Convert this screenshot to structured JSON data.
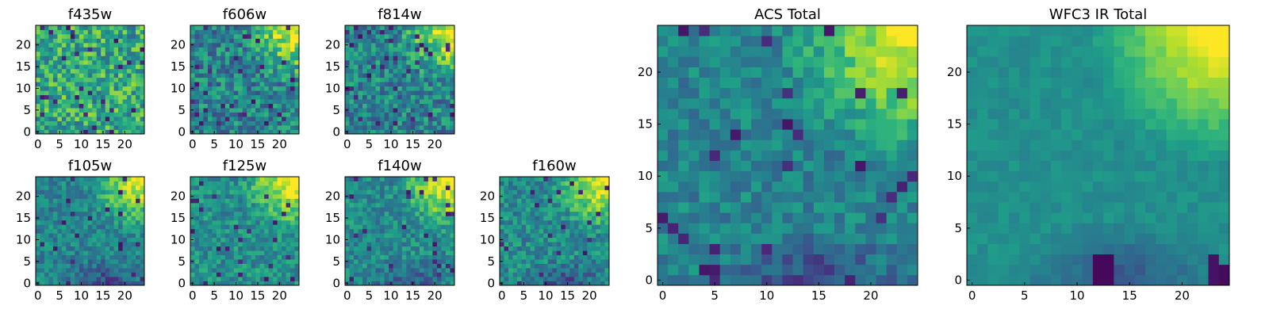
{
  "chart_data": [
    {
      "type": "heatmap",
      "title": "f435w",
      "grid_size": 25,
      "xlim": [
        0,
        24
      ],
      "ylim": [
        0,
        24
      ],
      "x_ticks": [
        0,
        5,
        10,
        15,
        20
      ],
      "y_ticks": [
        0,
        5,
        10,
        15,
        20
      ],
      "x_tick_labels": [
        "0",
        "5",
        "10",
        "15",
        "20"
      ],
      "y_tick_labels": [
        "0",
        "5",
        "10",
        "15",
        "20"
      ],
      "colormap": "viridis",
      "pattern": "uniform_noise",
      "level": 0.6,
      "noise": 0.25,
      "seed": 11
    },
    {
      "type": "heatmap",
      "title": "f606w",
      "grid_size": 25,
      "xlim": [
        0,
        24
      ],
      "ylim": [
        0,
        24
      ],
      "x_ticks": [
        0,
        5,
        10,
        15,
        20
      ],
      "y_ticks": [
        0,
        5,
        10,
        15,
        20
      ],
      "x_tick_labels": [
        "0",
        "5",
        "10",
        "15",
        "20"
      ],
      "y_tick_labels": [
        "0",
        "5",
        "10",
        "15",
        "20"
      ],
      "colormap": "viridis",
      "pattern": "corner_bright",
      "level": 0.45,
      "noise": 0.22,
      "seed": 22
    },
    {
      "type": "heatmap",
      "title": "f814w",
      "grid_size": 25,
      "xlim": [
        0,
        24
      ],
      "ylim": [
        0,
        24
      ],
      "x_ticks": [
        0,
        5,
        10,
        15,
        20
      ],
      "y_ticks": [
        0,
        5,
        10,
        15,
        20
      ],
      "x_tick_labels": [
        "0",
        "5",
        "10",
        "15",
        "20"
      ],
      "y_tick_labels": [
        "0",
        "5",
        "10",
        "15",
        "20"
      ],
      "colormap": "viridis",
      "pattern": "corner_bright",
      "level": 0.45,
      "noise": 0.22,
      "seed": 33
    },
    {
      "type": "heatmap",
      "title": "f105w",
      "grid_size": 25,
      "xlim": [
        0,
        24
      ],
      "ylim": [
        0,
        24
      ],
      "x_ticks": [
        0,
        5,
        10,
        15,
        20
      ],
      "y_ticks": [
        0,
        5,
        10,
        15,
        20
      ],
      "x_tick_labels": [
        "0",
        "5",
        "10",
        "15",
        "20"
      ],
      "y_tick_labels": [
        "0",
        "5",
        "10",
        "15",
        "20"
      ],
      "colormap": "viridis",
      "pattern": "corner_bright_dark_bottom",
      "level": 0.45,
      "noise": 0.15,
      "seed": 44
    },
    {
      "type": "heatmap",
      "title": "f125w",
      "grid_size": 25,
      "xlim": [
        0,
        24
      ],
      "ylim": [
        0,
        24
      ],
      "x_ticks": [
        0,
        5,
        10,
        15,
        20
      ],
      "y_ticks": [
        0,
        5,
        10,
        15,
        20
      ],
      "x_tick_labels": [
        "0",
        "5",
        "10",
        "15",
        "20"
      ],
      "y_tick_labels": [
        "0",
        "5",
        "10",
        "15",
        "20"
      ],
      "colormap": "viridis",
      "pattern": "corner_bright",
      "level": 0.5,
      "noise": 0.16,
      "seed": 55
    },
    {
      "type": "heatmap",
      "title": "f140w",
      "grid_size": 25,
      "xlim": [
        0,
        24
      ],
      "ylim": [
        0,
        24
      ],
      "x_ticks": [
        0,
        5,
        10,
        15,
        20
      ],
      "y_ticks": [
        0,
        5,
        10,
        15,
        20
      ],
      "x_tick_labels": [
        "0",
        "5",
        "10",
        "15",
        "20"
      ],
      "y_tick_labels": [
        "0",
        "5",
        "10",
        "15",
        "20"
      ],
      "colormap": "viridis",
      "pattern": "corner_bright_dark_bottom",
      "level": 0.48,
      "noise": 0.16,
      "seed": 66
    },
    {
      "type": "heatmap",
      "title": "f160w",
      "grid_size": 25,
      "xlim": [
        0,
        24
      ],
      "ylim": [
        0,
        24
      ],
      "x_ticks": [
        0,
        5,
        10,
        15,
        20
      ],
      "y_ticks": [
        0,
        5,
        10,
        15,
        20
      ],
      "x_tick_labels": [
        "0",
        "5",
        "10",
        "15",
        "20"
      ],
      "y_tick_labels": [
        "0",
        "5",
        "10",
        "15",
        "20"
      ],
      "colormap": "viridis",
      "pattern": "corner_bright_dark_bottom",
      "level": 0.48,
      "noise": 0.16,
      "seed": 77
    },
    {
      "type": "heatmap",
      "title": "ACS Total",
      "grid_size": 25,
      "xlim": [
        0,
        24
      ],
      "ylim": [
        0,
        24
      ],
      "x_ticks": [
        0,
        5,
        10,
        15,
        20
      ],
      "y_ticks": [
        0,
        5,
        10,
        15,
        20
      ],
      "x_tick_labels": [
        "0",
        "5",
        "10",
        "15",
        "20"
      ],
      "y_tick_labels": [
        "0",
        "5",
        "10",
        "15",
        "20"
      ],
      "colormap": "viridis",
      "pattern": "corner_bright_dark_bottom",
      "level": 0.45,
      "noise": 0.13,
      "seed": 88
    },
    {
      "type": "heatmap",
      "title": "WFC3 IR Total",
      "grid_size": 25,
      "xlim": [
        0,
        24
      ],
      "ylim": [
        0,
        24
      ],
      "x_ticks": [
        0,
        5,
        10,
        15,
        20
      ],
      "y_ticks": [
        0,
        5,
        10,
        15,
        20
      ],
      "x_tick_labels": [
        "0",
        "5",
        "10",
        "15",
        "20"
      ],
      "y_tick_labels": [
        "0",
        "5",
        "10",
        "15",
        "20"
      ],
      "colormap": "viridis",
      "pattern": "smooth_corner_dark_bottom",
      "level": 0.5,
      "noise": 0.05,
      "seed": 99
    }
  ]
}
